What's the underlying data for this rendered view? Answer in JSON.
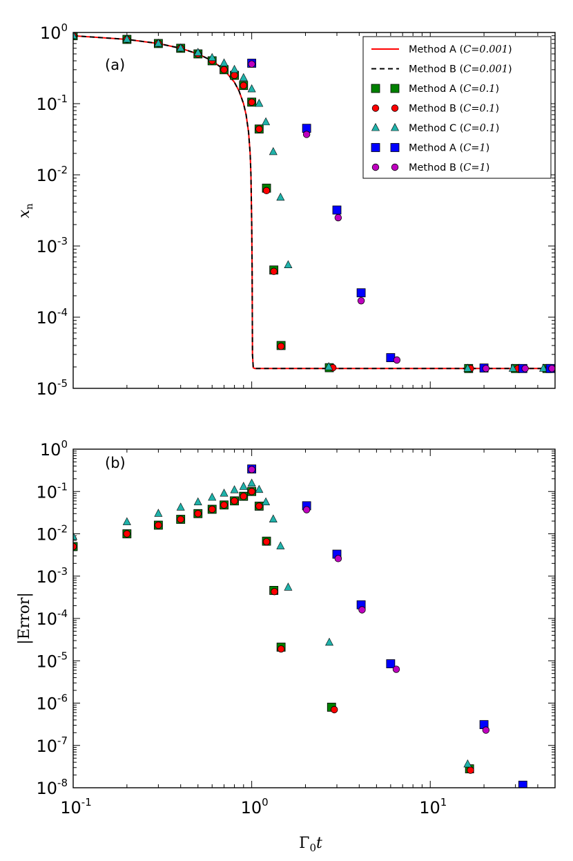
{
  "chart_data": [
    {
      "type": "line+scatter",
      "panel": "(a)",
      "title": "",
      "xlabel": "Γ0t",
      "ylabel": "xn",
      "xscale": "log",
      "yscale": "log",
      "xlim": [
        0.1,
        50
      ],
      "ylim": [
        1e-05,
        1
      ],
      "x_ticks": [
        {
          "value": 0.1,
          "base": "10",
          "exp": "-1"
        },
        {
          "value": 1,
          "base": "10",
          "exp": "0"
        },
        {
          "value": 10,
          "base": "10",
          "exp": "1"
        }
      ],
      "y_ticks": [
        {
          "value": 1,
          "base": "10",
          "exp": "0"
        },
        {
          "value": 0.1,
          "base": "10",
          "exp": "-1"
        },
        {
          "value": 0.01,
          "base": "10",
          "exp": "-2"
        },
        {
          "value": 0.001,
          "base": "10",
          "exp": "-3"
        },
        {
          "value": 0.0001,
          "base": "10",
          "exp": "-4"
        },
        {
          "value": 1e-05,
          "base": "10",
          "exp": "-5"
        }
      ],
      "legend_position": "top-right",
      "series": [
        {
          "name": "Method A (C=0.001)",
          "label_text": "Method A (",
          "label_math": "C=0.001",
          "kind": "line",
          "color": "#ff0000",
          "dash": "solid",
          "x": [
            0.1,
            0.2,
            0.3,
            0.4,
            0.5,
            0.6,
            0.7,
            0.8,
            0.85,
            0.9,
            0.93,
            0.96,
            0.98,
            0.99,
            1.0,
            1.005,
            1.01,
            1.02,
            1.04,
            1.1,
            1.5,
            2,
            5,
            10,
            20,
            50
          ],
          "y": [
            0.9,
            0.8,
            0.7,
            0.6,
            0.5,
            0.4,
            0.3,
            0.2,
            0.15,
            0.1,
            0.07,
            0.04,
            0.02,
            0.01,
            0.002,
            0.0005,
            3e-05,
            1.95e-05,
            1.9e-05,
            1.9e-05,
            1.9e-05,
            1.9e-05,
            1.9e-05,
            1.9e-05,
            1.9e-05,
            1.9e-05
          ]
        },
        {
          "name": "Method B (C=0.001)",
          "label_text": "Method B (",
          "label_math": "C=0.001",
          "kind": "line",
          "color": "#000000",
          "dash": "dashed",
          "x": [
            0.1,
            0.2,
            0.3,
            0.4,
            0.5,
            0.6,
            0.7,
            0.8,
            0.85,
            0.9,
            0.93,
            0.96,
            0.98,
            0.99,
            1.0,
            1.005,
            1.01,
            1.02,
            1.04,
            1.1,
            1.5,
            2,
            5,
            10,
            20,
            50
          ],
          "y": [
            0.9,
            0.8,
            0.7,
            0.6,
            0.5,
            0.4,
            0.3,
            0.2,
            0.15,
            0.1,
            0.07,
            0.04,
            0.02,
            0.01,
            0.002,
            0.0005,
            3e-05,
            1.95e-05,
            1.9e-05,
            1.9e-05,
            1.9e-05,
            1.9e-05,
            1.9e-05,
            1.9e-05,
            1.9e-05,
            1.9e-05
          ]
        },
        {
          "name": "Method A (C=0.1)",
          "label_text": "Method A (",
          "label_math": "C=0.1",
          "kind": "square",
          "color": "#008000",
          "x": [
            0.1,
            0.2,
            0.3,
            0.4,
            0.5,
            0.6,
            0.7,
            0.8,
            0.9,
            1.0,
            1.1,
            1.21,
            1.33,
            1.46,
            2.72,
            16.4,
            30,
            45
          ],
          "y": [
            0.9,
            0.8,
            0.7,
            0.6,
            0.5,
            0.4,
            0.3,
            0.25,
            0.18,
            0.105,
            0.044,
            0.0065,
            0.00046,
            4e-05,
            1.95e-05,
            1.9e-05,
            1.9e-05,
            1.9e-05
          ]
        },
        {
          "name": "Method B (C=0.1)",
          "label_text": "Method B (",
          "label_math": "C=0.1",
          "kind": "circle",
          "color": "#ff0000",
          "x": [
            0.1,
            0.2,
            0.3,
            0.4,
            0.5,
            0.6,
            0.7,
            0.8,
            0.9,
            1.0,
            1.1,
            1.21,
            1.33,
            1.46,
            2.85,
            16.8,
            31,
            46
          ],
          "y": [
            0.9,
            0.8,
            0.7,
            0.6,
            0.5,
            0.4,
            0.3,
            0.25,
            0.18,
            0.105,
            0.044,
            0.006,
            0.00044,
            3.9e-05,
            1.95e-05,
            1.9e-05,
            1.9e-05,
            1.9e-05
          ]
        },
        {
          "name": "Method C (C=0.1)",
          "label_text": "Method C (",
          "label_math": "C=0.1",
          "kind": "triangle",
          "color": "#20b2aa",
          "x": [
            0.1,
            0.2,
            0.3,
            0.4,
            0.5,
            0.6,
            0.7,
            0.8,
            0.9,
            1.0,
            1.1,
            1.2,
            1.32,
            1.45,
            1.6,
            2.7,
            16.2,
            29,
            43
          ],
          "y": [
            0.9,
            0.8,
            0.7,
            0.6,
            0.52,
            0.44,
            0.37,
            0.3,
            0.23,
            0.16,
            0.1,
            0.055,
            0.021,
            0.0048,
            0.00054,
            2e-05,
            1.9e-05,
            1.9e-05,
            1.9e-05
          ]
        },
        {
          "name": "Method A (C=1)",
          "label_text": "Method A (",
          "label_math": "C=1",
          "kind": "square",
          "color": "#0000ff",
          "x": [
            1.0,
            2.03,
            3.0,
            4.1,
            6.0,
            20,
            33,
            47
          ],
          "y": [
            0.37,
            0.045,
            0.0032,
            0.00022,
            2.7e-05,
            1.93e-05,
            1.9e-05,
            1.9e-05
          ]
        },
        {
          "name": "Method B (C=1)",
          "label_text": "Method B (",
          "label_math": "C=1",
          "kind": "circle",
          "color": "#bf00bf",
          "x": [
            1.0,
            2.03,
            3.05,
            4.1,
            6.5,
            20.5,
            34,
            48
          ],
          "y": [
            0.36,
            0.037,
            0.0025,
            0.00017,
            2.5e-05,
            1.9e-05,
            1.9e-05,
            1.9e-05
          ]
        }
      ]
    },
    {
      "type": "scatter",
      "panel": "(b)",
      "title": "",
      "xlabel": "Γ0t",
      "ylabel": "|Error|",
      "xscale": "log",
      "yscale": "log",
      "xlim": [
        0.1,
        50
      ],
      "ylim": [
        1e-08,
        1
      ],
      "x_ticks": [
        {
          "value": 0.1,
          "base": "10",
          "exp": "-1"
        },
        {
          "value": 1,
          "base": "10",
          "exp": "0"
        },
        {
          "value": 10,
          "base": "10",
          "exp": "1"
        }
      ],
      "y_ticks": [
        {
          "value": 1,
          "base": "10",
          "exp": "0"
        },
        {
          "value": 0.1,
          "base": "10",
          "exp": "-1"
        },
        {
          "value": 0.01,
          "base": "10",
          "exp": "-2"
        },
        {
          "value": 0.001,
          "base": "10",
          "exp": "-3"
        },
        {
          "value": 0.0001,
          "base": "10",
          "exp": "-4"
        },
        {
          "value": 1e-05,
          "base": "10",
          "exp": "-5"
        },
        {
          "value": 1e-06,
          "base": "10",
          "exp": "-6"
        },
        {
          "value": 1e-07,
          "base": "10",
          "exp": "-7"
        },
        {
          "value": 1e-08,
          "base": "10",
          "exp": "-8"
        }
      ],
      "series": [
        {
          "name": "Method A (C=0.1)",
          "kind": "square",
          "color": "#008000",
          "x": [
            0.1,
            0.2,
            0.3,
            0.4,
            0.5,
            0.6,
            0.7,
            0.8,
            0.9,
            1.0,
            1.1,
            1.21,
            1.33,
            1.46,
            2.8,
            16.6
          ],
          "y": [
            0.005,
            0.01,
            0.016,
            0.022,
            0.03,
            0.038,
            0.048,
            0.06,
            0.077,
            0.1,
            0.045,
            0.0067,
            0.00046,
            2.1e-05,
            8e-07,
            2.8e-08
          ]
        },
        {
          "name": "Method B (C=0.1)",
          "kind": "circle",
          "color": "#ff0000",
          "x": [
            0.1,
            0.2,
            0.3,
            0.4,
            0.5,
            0.6,
            0.7,
            0.8,
            0.9,
            1.0,
            1.1,
            1.21,
            1.34,
            1.46,
            2.9,
            16.8
          ],
          "y": [
            0.005,
            0.01,
            0.016,
            0.022,
            0.03,
            0.038,
            0.048,
            0.06,
            0.077,
            0.1,
            0.045,
            0.0065,
            0.00043,
            1.9e-05,
            7e-07,
            2.6e-08
          ]
        },
        {
          "name": "Method C (C=0.1)",
          "kind": "triangle",
          "color": "#20b2aa",
          "x": [
            0.1,
            0.2,
            0.3,
            0.4,
            0.5,
            0.6,
            0.7,
            0.8,
            0.9,
            1.0,
            1.1,
            1.2,
            1.32,
            1.45,
            1.6,
            2.72,
            16.2
          ],
          "y": [
            0.0085,
            0.019,
            0.03,
            0.042,
            0.056,
            0.072,
            0.09,
            0.108,
            0.13,
            0.155,
            0.11,
            0.056,
            0.022,
            0.0051,
            0.00054,
            2.7e-05,
            3.6e-08
          ]
        },
        {
          "name": "Method A (C=1)",
          "kind": "square",
          "color": "#0000ff",
          "x": [
            1.0,
            2.03,
            3.0,
            4.1,
            6.0,
            20,
            33
          ],
          "y": [
            0.34,
            0.046,
            0.0033,
            0.00021,
            8.5e-06,
            3.1e-07,
            1.15e-08
          ]
        },
        {
          "name": "Method B (C=1)",
          "kind": "circle",
          "color": "#bf00bf",
          "x": [
            1.0,
            2.03,
            3.05,
            4.15,
            6.45,
            20.5
          ],
          "y": [
            0.33,
            0.037,
            0.0026,
            0.00016,
            6.3e-06,
            2.3e-07
          ]
        }
      ]
    }
  ]
}
